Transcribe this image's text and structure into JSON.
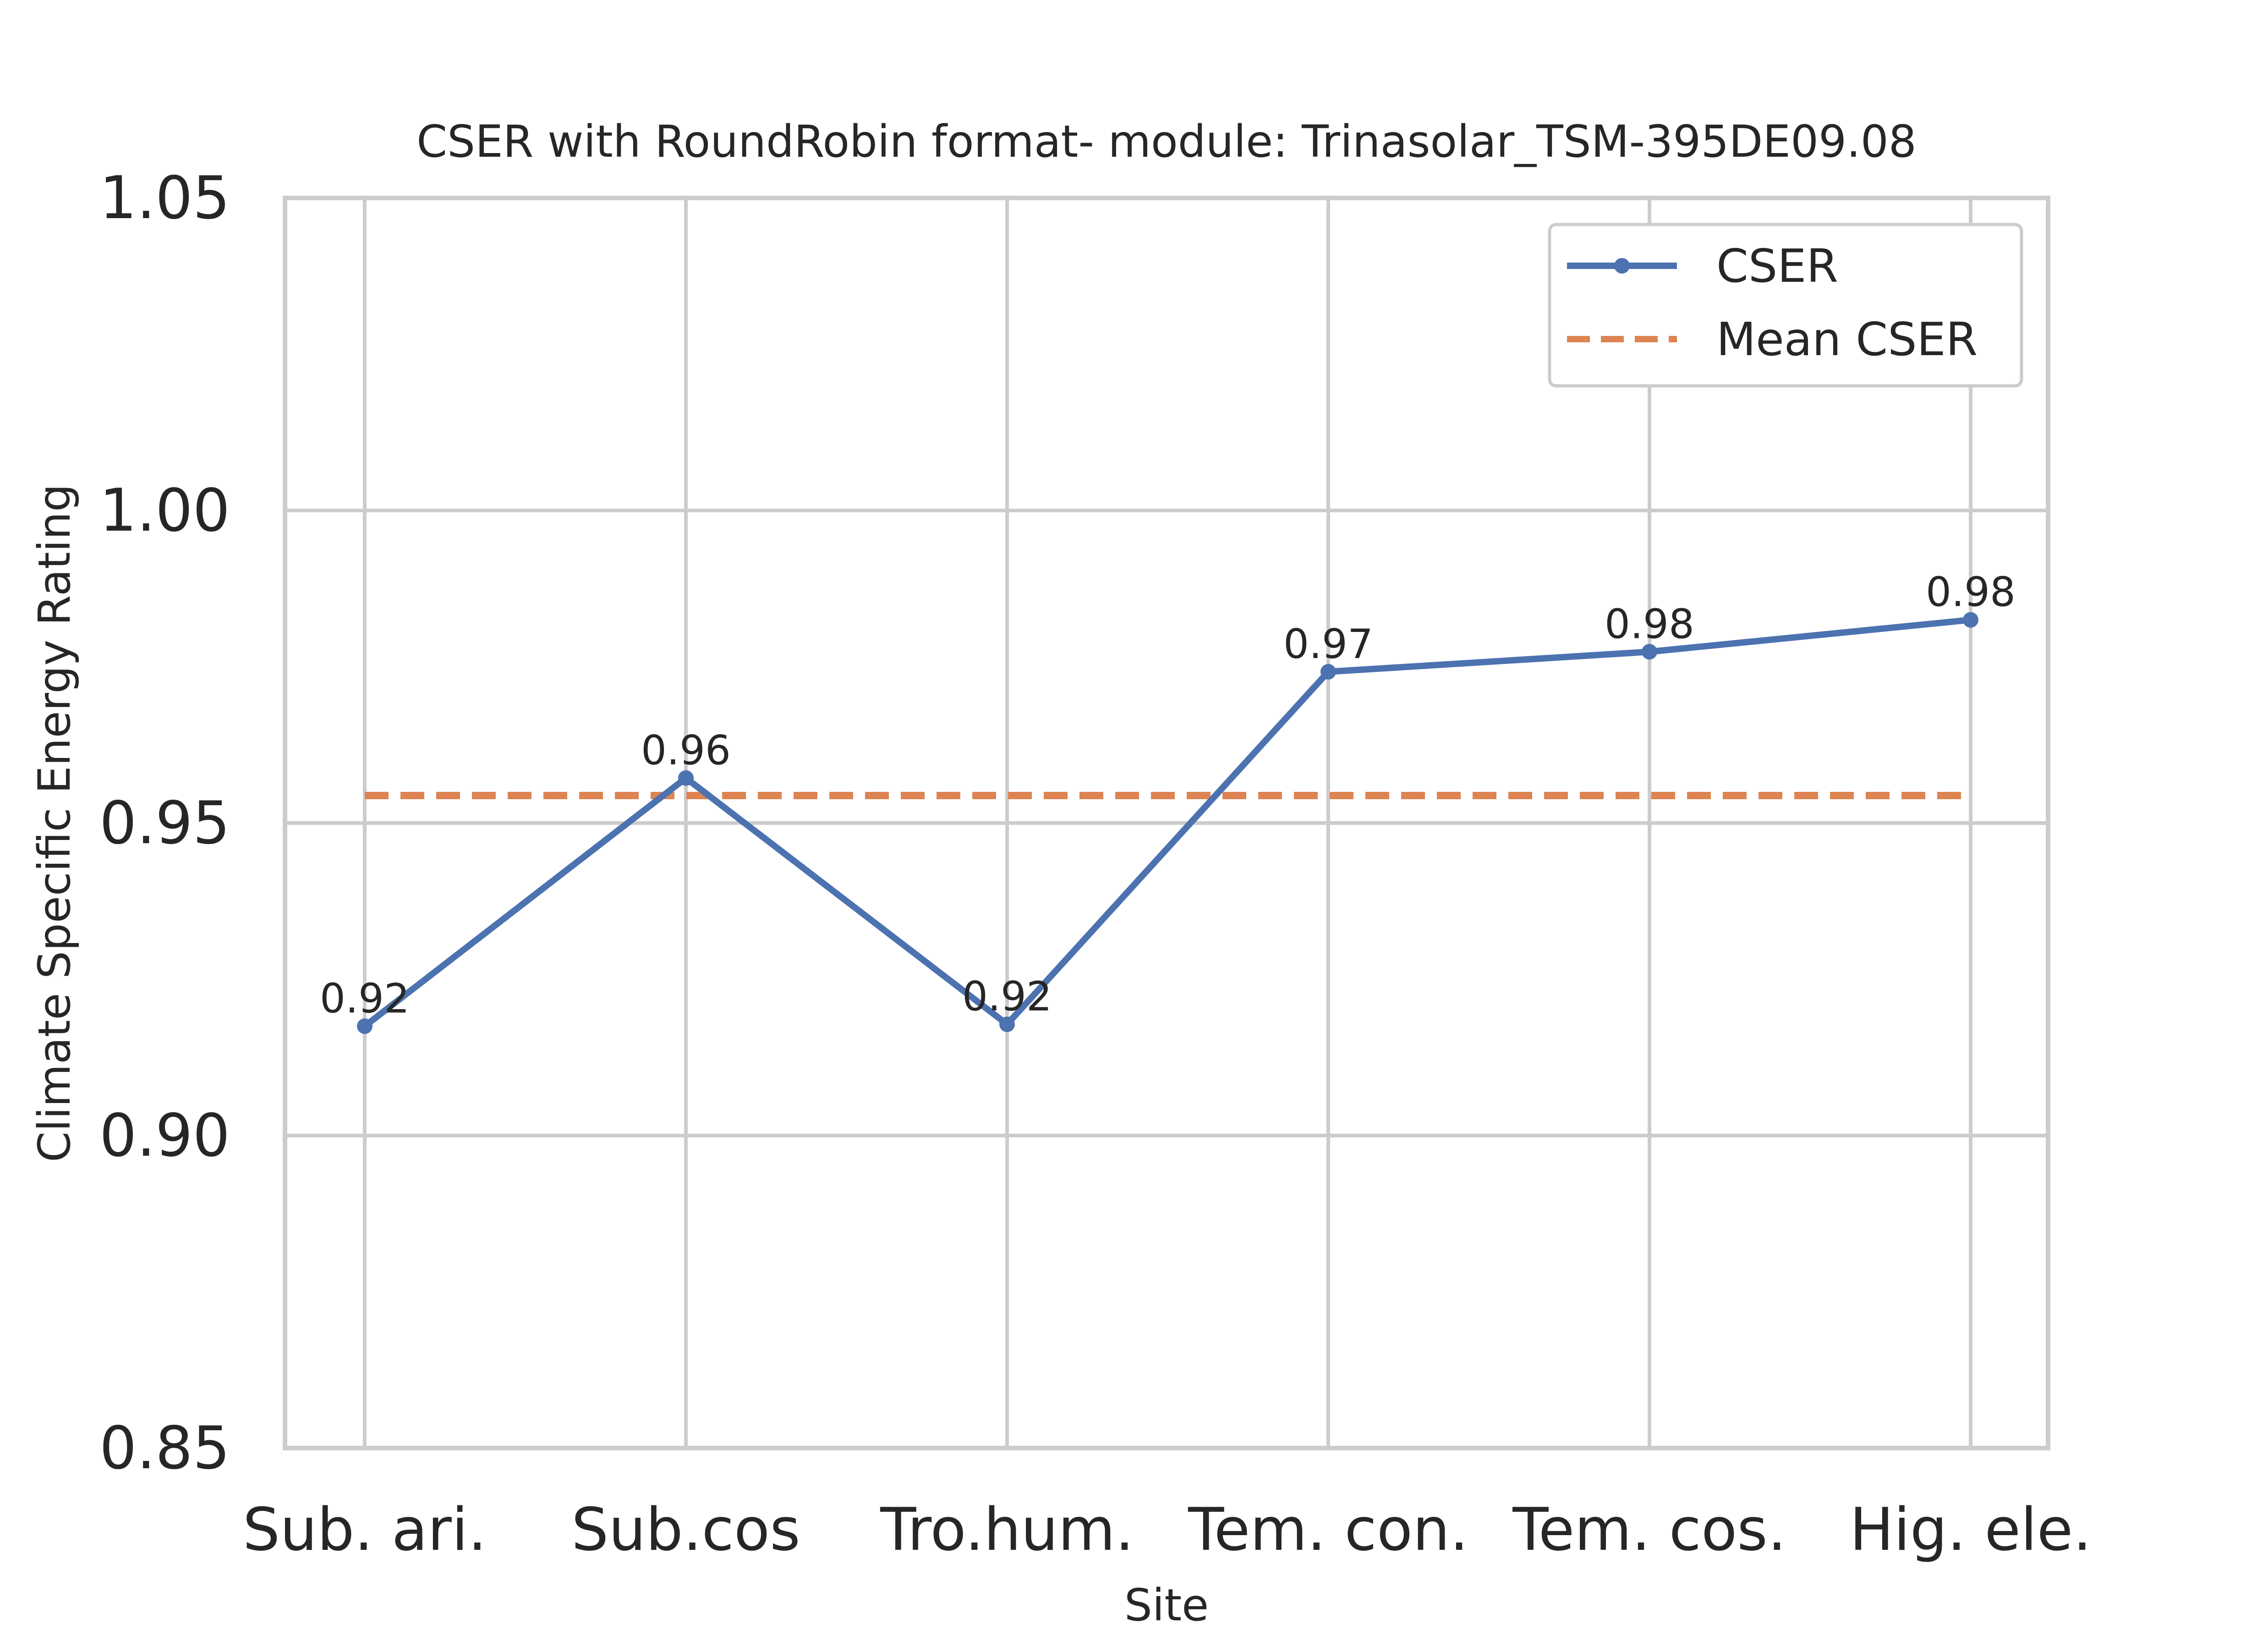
{
  "chart_data": {
    "type": "line",
    "title": "CSER with RoundRobin format- module: Trinasolar_TSM-395DE09.08",
    "xlabel": "Site",
    "ylabel": "Climate Specific Energy Rating",
    "categories": [
      "Sub. ari.",
      "Sub.cos",
      "Tro.hum.",
      "Tem. con.",
      "Tem. cos.",
      "Hig. ele."
    ],
    "ylim": [
      0.85,
      1.05
    ],
    "yticks": [
      "0.85",
      "0.90",
      "0.95",
      "1.00",
      "1.05"
    ],
    "grid": true,
    "legend_position": "top-right",
    "series": [
      {
        "name": "CSER",
        "style": "solid-marker",
        "color": "#4c72b0",
        "values": [
          0.9175,
          0.9572,
          0.9178,
          0.9742,
          0.9774,
          0.9825
        ],
        "data_labels": [
          "0.92",
          "0.96",
          "0.92",
          "0.97",
          "0.98",
          "0.98"
        ]
      },
      {
        "name": "Mean CSER",
        "style": "dashed",
        "color": "#dd8452",
        "values": [
          0.9544,
          0.9544,
          0.9544,
          0.9544,
          0.9544,
          0.9544
        ]
      }
    ]
  }
}
